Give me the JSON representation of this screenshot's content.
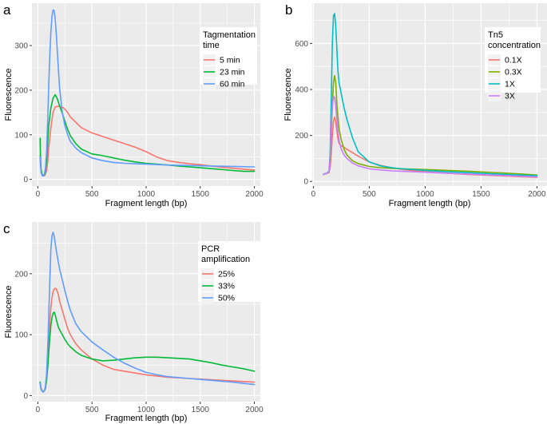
{
  "figure": {
    "panel_labels": [
      "a",
      "b",
      "c"
    ]
  },
  "chart_data": [
    {
      "type": "line",
      "panel": "a",
      "xlabel": "Fragment length (bp)",
      "ylabel": "Fluorescence",
      "xlim": [
        -55,
        2055
      ],
      "ylim": [
        -15,
        395
      ],
      "xticks": [
        0,
        500,
        1000,
        1500,
        2000
      ],
      "yticks": [
        0,
        100,
        200,
        300
      ],
      "grid": true,
      "legend": {
        "title": [
          "Tagmentation",
          "time"
        ],
        "position": "top-right"
      },
      "series": [
        {
          "name": "5 min",
          "color": "#F8766D",
          "x": [
            20,
            30,
            40,
            50,
            60,
            70,
            80,
            90,
            100,
            120,
            140,
            160,
            180,
            200,
            225,
            250,
            275,
            300,
            350,
            400,
            500,
            600,
            700,
            800,
            900,
            1000,
            1100,
            1200,
            1300,
            1400,
            1500,
            1600,
            1700,
            1800,
            1900,
            2000
          ],
          "y": [
            55,
            20,
            10,
            8,
            8,
            12,
            20,
            40,
            70,
            115,
            150,
            162,
            164,
            163,
            162,
            157,
            150,
            140,
            128,
            116,
            104,
            96,
            88,
            80,
            72,
            62,
            50,
            42,
            38,
            35,
            33,
            30,
            27,
            25,
            23,
            21
          ]
        },
        {
          "name": "23 min",
          "color": "#00BA38",
          "x": [
            20,
            25,
            30,
            40,
            50,
            60,
            70,
            80,
            90,
            100,
            120,
            140,
            160,
            180,
            200,
            225,
            250,
            275,
            300,
            350,
            400,
            500,
            600,
            700,
            800,
            900,
            1000,
            1100,
            1200,
            1300,
            1400,
            1500,
            1600,
            1700,
            1800,
            1900,
            2000
          ],
          "y": [
            92,
            45,
            22,
            10,
            8,
            10,
            18,
            40,
            80,
            120,
            160,
            182,
            190,
            180,
            165,
            148,
            130,
            112,
            98,
            80,
            68,
            57,
            53,
            48,
            43,
            39,
            36,
            34,
            32,
            30,
            28,
            26,
            24,
            22,
            20,
            18,
            18
          ]
        },
        {
          "name": "60 min",
          "color": "#619CFF",
          "x": [
            20,
            25,
            30,
            40,
            50,
            60,
            70,
            80,
            90,
            100,
            110,
            120,
            130,
            140,
            150,
            160,
            170,
            180,
            190,
            200,
            225,
            250,
            275,
            300,
            350,
            400,
            500,
            600,
            700,
            800,
            900,
            1000,
            1200,
            1400,
            1600,
            1800,
            2000
          ],
          "y": [
            50,
            30,
            15,
            8,
            8,
            12,
            25,
            60,
            130,
            210,
            280,
            330,
            365,
            380,
            378,
            360,
            325,
            285,
            245,
            205,
            150,
            120,
            100,
            85,
            70,
            60,
            48,
            42,
            38,
            36,
            35,
            34,
            32,
            31,
            30,
            29,
            28
          ]
        }
      ]
    },
    {
      "type": "line",
      "panel": "b",
      "xlabel": "Fragment length (bp)",
      "ylabel": "Fluorescence",
      "xlim": [
        -10,
        2090
      ],
      "ylim": [
        -20,
        775
      ],
      "xticks": [
        0,
        500,
        1000,
        1500,
        2000
      ],
      "yticks": [
        0,
        200,
        400,
        600
      ],
      "grid": true,
      "legend": {
        "title": [
          "Tn5",
          "concentration"
        ],
        "position": "top-right"
      },
      "series": [
        {
          "name": "0.1X",
          "color": "#F8766D",
          "x": [
            90,
            100,
            120,
            140,
            150,
            160,
            170,
            180,
            190,
            200,
            210,
            220,
            230,
            250,
            275,
            300,
            350,
            400,
            500,
            600,
            700,
            800,
            1000,
            1200,
            1400,
            1600,
            1800,
            2000
          ],
          "y": [
            30,
            33,
            35,
            38,
            60,
            120,
            200,
            260,
            280,
            260,
            220,
            185,
            165,
            155,
            148,
            140,
            125,
            110,
            85,
            70,
            60,
            52,
            42,
            36,
            30,
            26,
            22,
            18
          ]
        },
        {
          "name": "0.3X",
          "color": "#7CAE00",
          "x": [
            90,
            100,
            120,
            140,
            150,
            160,
            170,
            180,
            190,
            200,
            210,
            220,
            230,
            250,
            275,
            300,
            350,
            400,
            500,
            600,
            700,
            800,
            1000,
            1200,
            1400,
            1600,
            1800,
            2000
          ],
          "y": [
            30,
            33,
            35,
            40,
            90,
            200,
            330,
            430,
            460,
            430,
            340,
            280,
            230,
            180,
            140,
            115,
            90,
            78,
            65,
            60,
            57,
            55,
            52,
            48,
            44,
            39,
            34,
            28
          ]
        },
        {
          "name": "1X",
          "color": "#00BFC4",
          "x": [
            90,
            100,
            120,
            140,
            150,
            160,
            170,
            180,
            190,
            200,
            210,
            220,
            230,
            250,
            275,
            300,
            350,
            400,
            500,
            600,
            700,
            800,
            1000,
            1200,
            1400,
            1600,
            1800,
            2000
          ],
          "y": [
            30,
            33,
            36,
            45,
            120,
            350,
            600,
            720,
            730,
            680,
            580,
            480,
            430,
            380,
            320,
            270,
            190,
            130,
            85,
            68,
            60,
            55,
            48,
            42,
            38,
            33,
            29,
            25
          ]
        },
        {
          "name": "3X",
          "color": "#C77CFF",
          "x": [
            90,
            100,
            120,
            140,
            150,
            160,
            170,
            180,
            190,
            200,
            210,
            220,
            230,
            250,
            275,
            300,
            350,
            400,
            500,
            600,
            700,
            800,
            1000,
            1200,
            1400,
            1600,
            1800,
            2000
          ],
          "y": [
            30,
            33,
            35,
            42,
            100,
            240,
            330,
            370,
            365,
            330,
            270,
            220,
            180,
            140,
            115,
            100,
            80,
            68,
            55,
            50,
            46,
            44,
            40,
            36,
            32,
            28,
            24,
            20
          ]
        }
      ]
    },
    {
      "type": "line",
      "panel": "c",
      "xlabel": "Fragment length (bp)",
      "ylabel": "Fluorescence",
      "xlim": [
        -55,
        2055
      ],
      "ylim": [
        -10,
        285
      ],
      "xticks": [
        0,
        500,
        1000,
        1500,
        2000
      ],
      "yticks": [
        0,
        100,
        200
      ],
      "grid": true,
      "legend": {
        "title": [
          "PCR",
          "amplification"
        ],
        "position": "top-right"
      },
      "series": [
        {
          "name": "25%",
          "color": "#F8766D",
          "x": [
            20,
            30,
            40,
            50,
            60,
            70,
            80,
            90,
            100,
            110,
            120,
            130,
            140,
            150,
            160,
            170,
            180,
            190,
            200,
            225,
            250,
            275,
            300,
            350,
            400,
            500,
            600,
            700,
            800,
            900,
            1000,
            1200,
            1400,
            1600,
            1800,
            2000
          ],
          "y": [
            22,
            12,
            8,
            6,
            8,
            12,
            25,
            50,
            85,
            120,
            145,
            160,
            170,
            175,
            176,
            175,
            170,
            165,
            155,
            140,
            125,
            110,
            100,
            85,
            75,
            60,
            50,
            43,
            40,
            37,
            34,
            30,
            28,
            26,
            24,
            22
          ]
        },
        {
          "name": "33%",
          "color": "#00BA38",
          "x": [
            20,
            30,
            40,
            50,
            60,
            70,
            80,
            90,
            100,
            110,
            120,
            130,
            140,
            150,
            160,
            170,
            180,
            190,
            200,
            225,
            250,
            275,
            300,
            350,
            400,
            500,
            600,
            700,
            800,
            900,
            1000,
            1100,
            1200,
            1300,
            1400,
            1500,
            1600,
            1700,
            1800,
            1900,
            2000
          ],
          "y": [
            22,
            10,
            8,
            6,
            8,
            12,
            25,
            45,
            70,
            95,
            115,
            128,
            135,
            137,
            133,
            125,
            118,
            112,
            108,
            100,
            92,
            85,
            80,
            72,
            66,
            60,
            57,
            58,
            60,
            62,
            63,
            63,
            62,
            61,
            60,
            57,
            54,
            50,
            47,
            44,
            40
          ]
        },
        {
          "name": "50%",
          "color": "#619CFF",
          "x": [
            20,
            30,
            40,
            50,
            60,
            70,
            80,
            90,
            100,
            110,
            120,
            130,
            140,
            150,
            160,
            170,
            180,
            190,
            200,
            225,
            250,
            275,
            300,
            350,
            400,
            500,
            600,
            700,
            800,
            900,
            1000,
            1100,
            1200,
            1400,
            1600,
            1800,
            2000
          ],
          "y": [
            20,
            10,
            7,
            6,
            8,
            15,
            35,
            75,
            130,
            190,
            240,
            262,
            268,
            262,
            250,
            238,
            228,
            218,
            208,
            190,
            172,
            155,
            140,
            118,
            105,
            88,
            75,
            63,
            53,
            45,
            38,
            34,
            31,
            28,
            25,
            22,
            18
          ]
        }
      ]
    }
  ]
}
